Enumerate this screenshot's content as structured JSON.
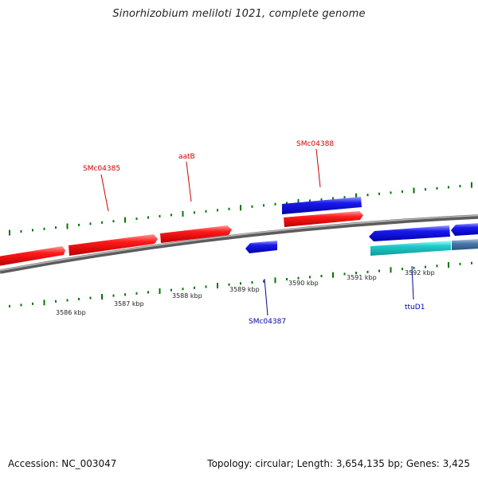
{
  "title": "Sinorhizobium meliloti 1021, complete genome",
  "footer": {
    "accession_label": "Accession:",
    "accession": "NC_003047",
    "topology_label": "Topology:",
    "topology": "circular",
    "length_label": "Length:",
    "length": "3,654,135 bp",
    "genes_label": "Genes:",
    "genes": "3,425"
  },
  "scale_labels": [
    "3586 kbp",
    "3587 kbp",
    "3588 kbp",
    "3589 kbp",
    "3590 kbp",
    "3591 kbp",
    "3592 kbp"
  ],
  "gene_labels": [
    {
      "name": "SMc04385",
      "strand": "forward"
    },
    {
      "name": "aatB",
      "strand": "forward"
    },
    {
      "name": "SMc04388",
      "strand": "forward"
    },
    {
      "name": "SMc04387",
      "strand": "reverse"
    },
    {
      "name": "ttuD1",
      "strand": "reverse"
    }
  ],
  "colors": {
    "forward_label": "#cc0000",
    "reverse_label": "#0000aa",
    "forward_gene": "#ee1111",
    "reverse_gene": "#1111ee",
    "reverse_gene_alt": "#22cccc",
    "reverse_gene_steel": "#4a78a8",
    "backbone": "#808080",
    "tick": "#007700"
  }
}
